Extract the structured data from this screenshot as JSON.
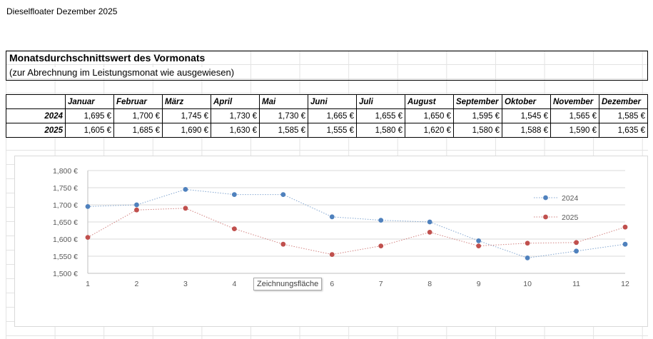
{
  "sheet": {
    "doc_title": "Dieselfloater Dezember 2025",
    "section_title": "Monatsdurchschnittswert des Vormonats",
    "section_subtitle": "(zur Abrechnung im Leistungsmonat wie ausgewiesen)"
  },
  "table": {
    "months": [
      "Januar",
      "Februar",
      "März",
      "April",
      "Mai",
      "Juni",
      "Juli",
      "August",
      "September",
      "Oktober",
      "November",
      "Dezember"
    ],
    "rows": [
      {
        "year": "2024",
        "values": [
          "1,695 €",
          "1,700 €",
          "1,745 €",
          "1,730 €",
          "1,730 €",
          "1,665 €",
          "1,655 €",
          "1,650 €",
          "1,595 €",
          "1,545 €",
          "1,565 €",
          "1,585 €"
        ]
      },
      {
        "year": "2025",
        "values": [
          "1,605 €",
          "1,685 €",
          "1,690 €",
          "1,630 €",
          "1,585 €",
          "1,555 €",
          "1,580 €",
          "1,620 €",
          "1,580 €",
          "1,588 €",
          "1,590 €",
          "1,635 €"
        ]
      }
    ]
  },
  "chart_data": {
    "type": "scatter",
    "x": [
      1,
      2,
      3,
      4,
      5,
      6,
      7,
      8,
      9,
      10,
      11,
      12
    ],
    "xlim": [
      1,
      12
    ],
    "ylim": [
      1.5,
      1.8
    ],
    "y_ticks": [
      "1,500 €",
      "1,550 €",
      "1,600 €",
      "1,650 €",
      "1,700 €",
      "1,750 €",
      "1,800 €"
    ],
    "x_ticks": [
      "1",
      "2",
      "3",
      "4",
      "5",
      "6",
      "7",
      "8",
      "9",
      "10",
      "11",
      "12"
    ],
    "grid": "horizontal",
    "legend_position": "right",
    "series": [
      {
        "name": "2024",
        "color": "#4f81bd",
        "values": [
          1.695,
          1.7,
          1.745,
          1.73,
          1.73,
          1.665,
          1.655,
          1.65,
          1.595,
          1.545,
          1.565,
          1.585
        ]
      },
      {
        "name": "2025",
        "color": "#c0504d",
        "values": [
          1.605,
          1.685,
          1.69,
          1.63,
          1.585,
          1.555,
          1.58,
          1.62,
          1.58,
          1.588,
          1.59,
          1.635
        ]
      }
    ]
  },
  "tooltip": {
    "text": "Zeichnungsfläche"
  }
}
